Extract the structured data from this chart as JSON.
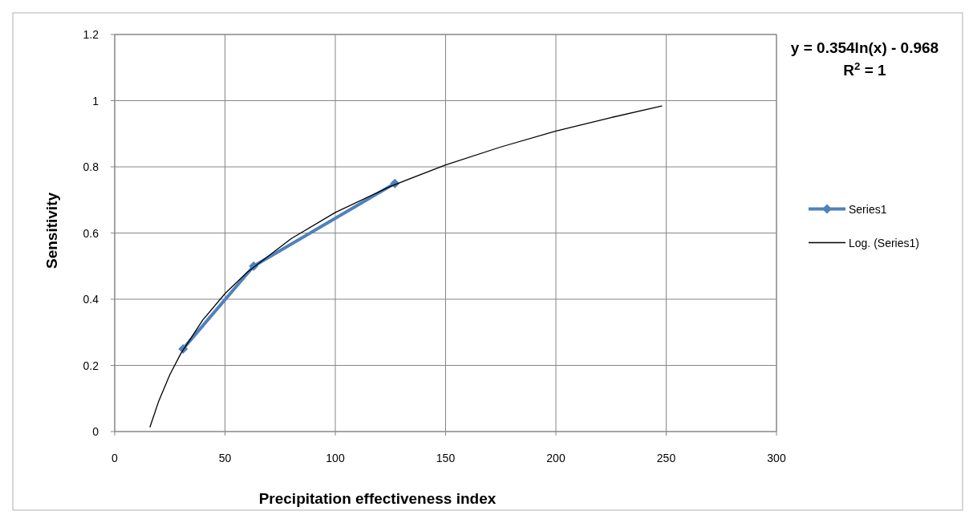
{
  "chart_data": {
    "type": "line",
    "xlabel": "Precipitation effectiveness index",
    "ylabel": "Sensitivity",
    "xlim": [
      0,
      300
    ],
    "xticks": [
      0,
      50,
      100,
      150,
      200,
      250,
      300
    ],
    "ylim": [
      0,
      1.2
    ],
    "yticks": [
      0,
      0.2,
      0.4,
      0.6,
      0.8,
      1,
      1.2
    ],
    "grid": true,
    "legend": "right",
    "annotations": [
      "y = 0.354ln(x) - 0.968",
      "R$^{2}$ = 1"
    ],
    "series": [
      {
        "name": "Series1",
        "color": "#4f81bd",
        "marker": "diamond",
        "x": [
          31,
          63,
          127
        ],
        "values": [
          0.25,
          0.5,
          0.75
        ]
      },
      {
        "name": "Log. (Series1)",
        "color": "#000000",
        "marker": "none",
        "x": [
          16,
          20,
          25,
          30,
          40,
          50,
          60,
          80,
          100,
          125,
          150,
          175,
          200,
          225,
          248
        ],
        "values": [
          0.014,
          0.093,
          0.172,
          0.236,
          0.338,
          0.417,
          0.481,
          0.583,
          0.662,
          0.741,
          0.806,
          0.86,
          0.908,
          0.949,
          0.984
        ]
      }
    ]
  }
}
